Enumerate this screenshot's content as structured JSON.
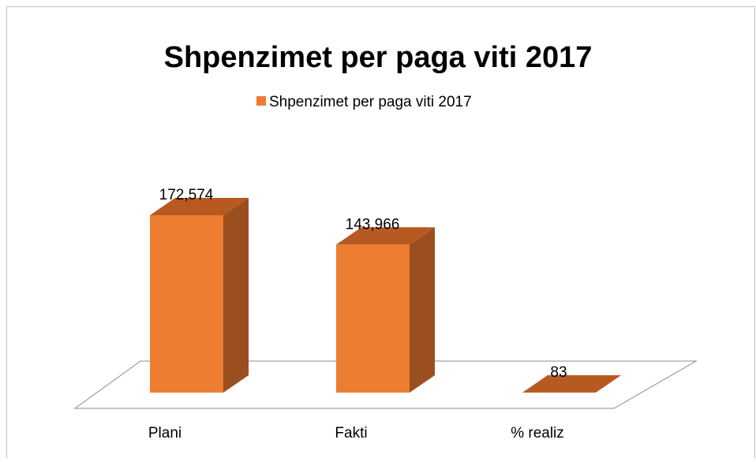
{
  "chart_data": {
    "type": "bar3d",
    "title": "Shpenzimet per paga viti 2017",
    "categories": [
      "Plani",
      "Fakti",
      "% realiz"
    ],
    "series": [
      {
        "name": "Shpenzimet per paga viti 2017",
        "color": "#ed7d31",
        "values": [
          172574,
          143966,
          83
        ],
        "value_labels": [
          "172,574",
          "143,966",
          "83"
        ]
      }
    ]
  }
}
